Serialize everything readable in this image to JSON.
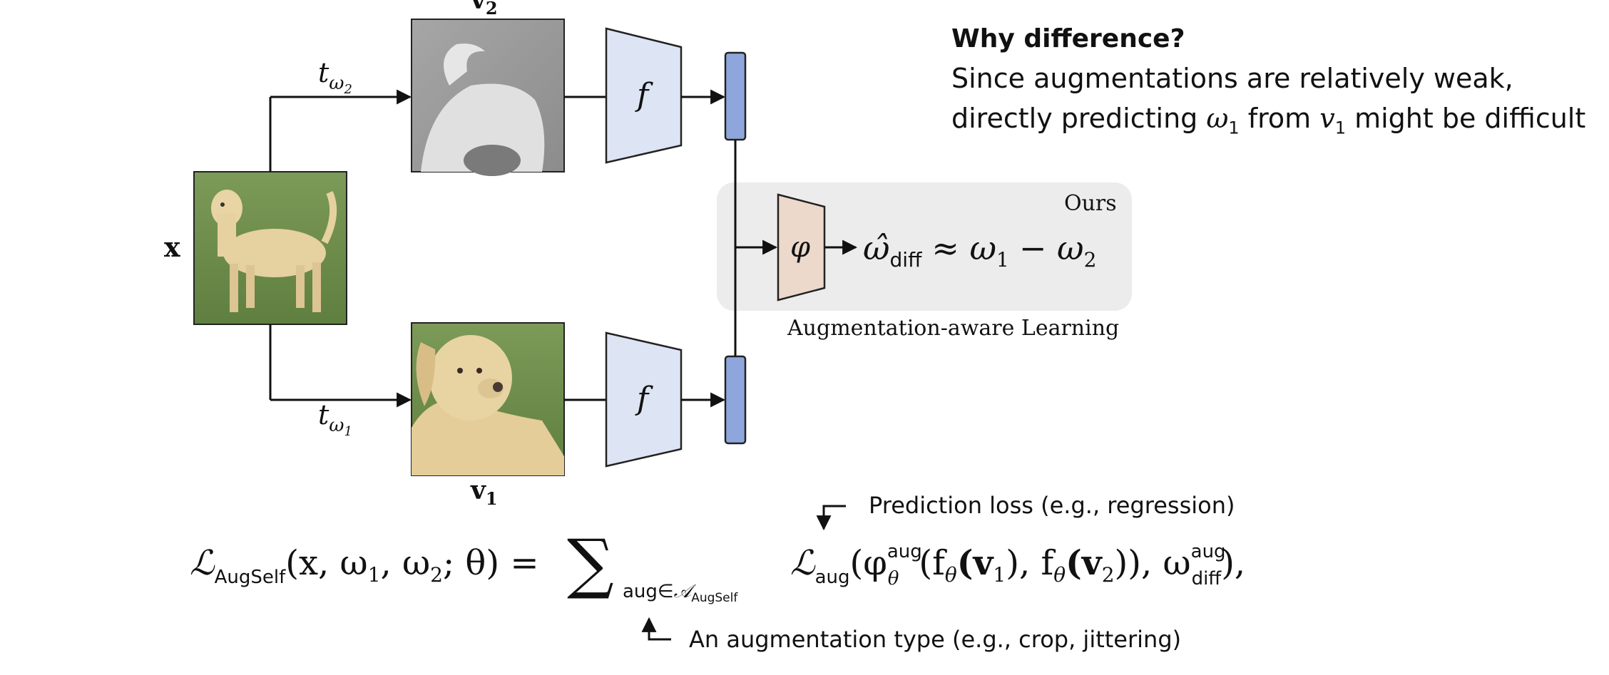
{
  "labels": {
    "x": "x",
    "v1": "v",
    "v1_sub": "1",
    "v2": "v",
    "v2_sub": "2",
    "t_top": "t",
    "t_top_sub": "ω",
    "t_top_subsub": "2",
    "t_bottom": "t",
    "t_bottom_sub": "ω",
    "t_bottom_subsub": "1",
    "encoder": "f",
    "phi": "φ",
    "ours": "Ours",
    "aug_aware": "Augmentation-aware Learning",
    "omega_hat": "ω̂",
    "diff_sub": "diff",
    "approx_rhs": "≈ ω",
    "minus": "− ω",
    "sub1": "1",
    "sub2": "2"
  },
  "annotation": {
    "title": "Why difference?",
    "line1": "Since augmentations are relatively weak,",
    "line2_a": "directly predicting ",
    "line2_omega": "ω",
    "line2_omega_sub": "1",
    "line2_b": " from ",
    "line2_v": "v",
    "line2_v_sub": "1",
    "line2_c": " might be difficult"
  },
  "formula": {
    "loss_L": "ℒ",
    "loss_sub": "AugSelf",
    "args": "(x, ω",
    "args_s1": "1",
    "args_mid": ", ω",
    "args_s2": "2",
    "args_end": "; θ) = ",
    "sum": "∑",
    "sum_sub_a": "aug∈",
    "sum_sub_A": "𝒜",
    "sum_sub_AugSelf": "AugSelf",
    "L_aug": "ℒ",
    "L_aug_sub": "aug",
    "phi_part": "(φ",
    "phi_sup": "aug",
    "phi_sub": "θ",
    "f1": "(f",
    "f1_sub": "θ",
    "f1_arg": "(v",
    "f1_arg_sub": "1",
    "f2": "), f",
    "f2_sub": "θ",
    "f2_arg": "(v",
    "f2_arg_sub": "2",
    "tail": ")), ω",
    "tail_sup": "aug",
    "tail_sub": "diff",
    "end": "),"
  },
  "notes": {
    "prediction_loss": "Prediction loss (e.g., regression)",
    "aug_type": "An augmentation type (e.g., crop, jittering)"
  },
  "colors": {
    "encoder_fill": "#dde4f4",
    "feature_fill": "#8fa6dc",
    "phi_fill": "#ecd9cc",
    "ours_box": "#ececec",
    "grass": "#6f8f4c",
    "dog": "#e5cf9c",
    "gray_bg": "#9a9a9a"
  }
}
